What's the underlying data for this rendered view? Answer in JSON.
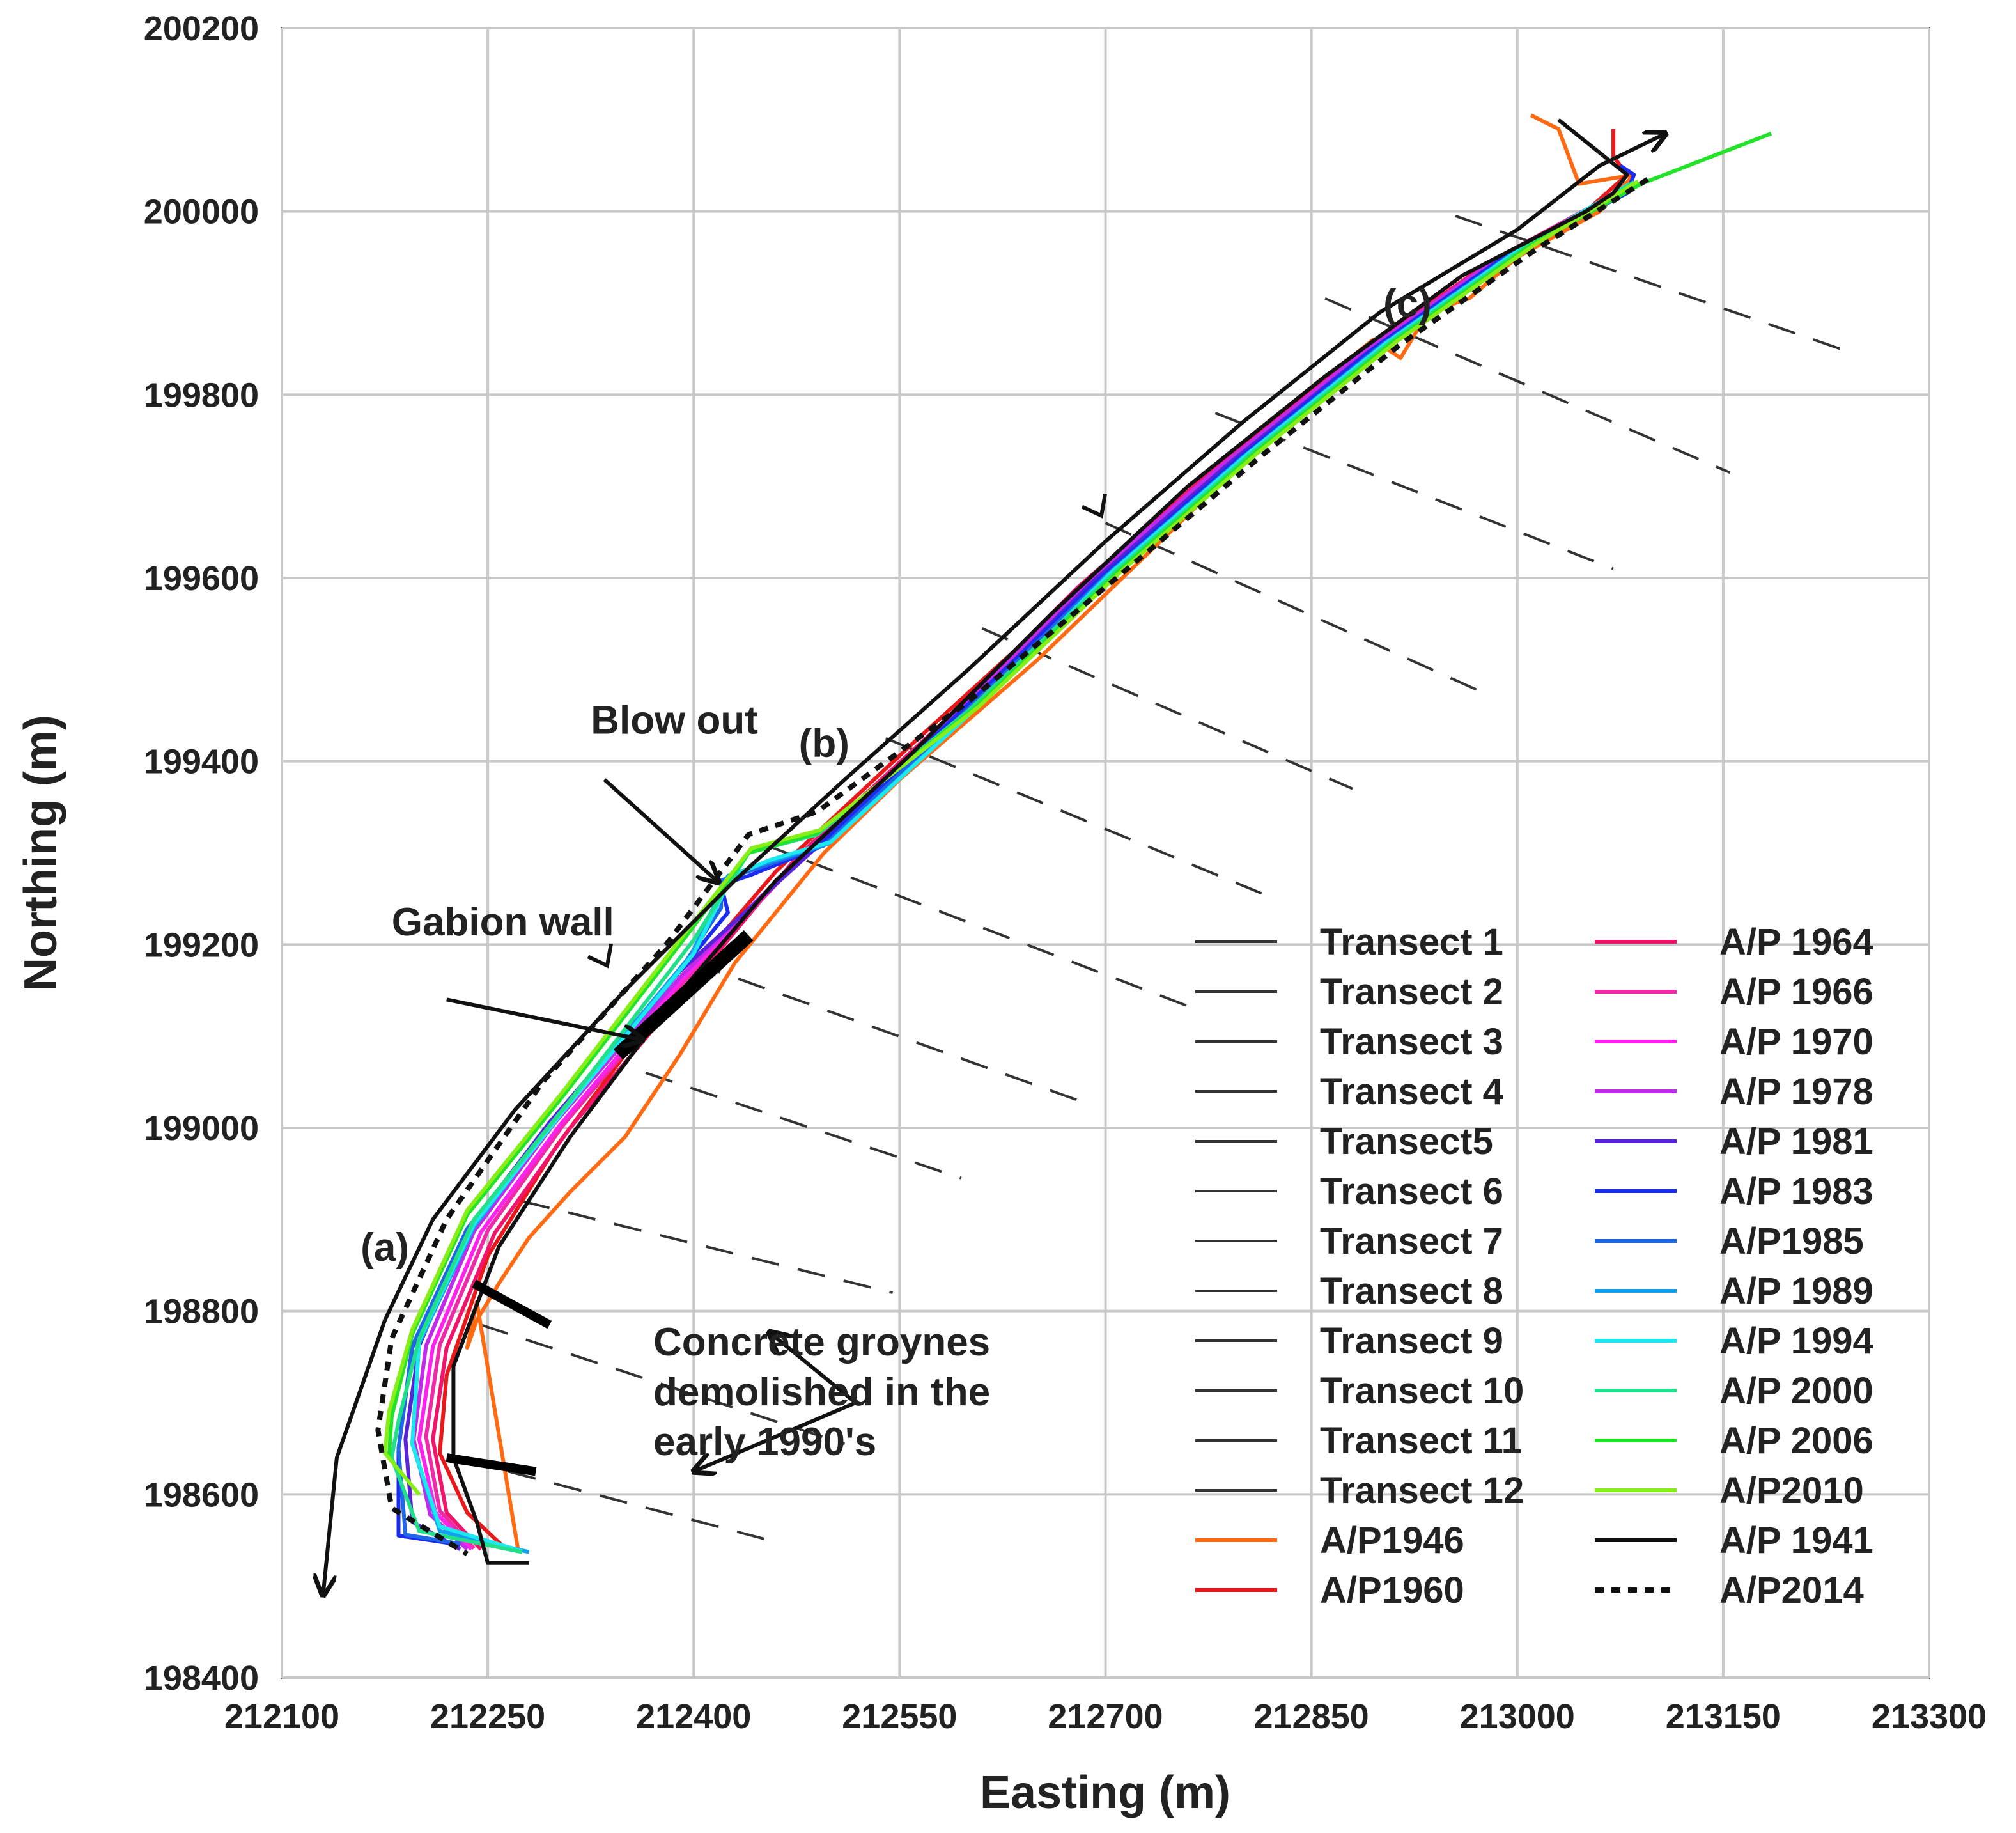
{
  "chart_data": {
    "type": "line",
    "xlabel": "Easting (m)",
    "ylabel": "Northing (m)",
    "xlim": [
      212100,
      213300
    ],
    "ylim": [
      198400,
      200200
    ],
    "xticks": [
      "212100",
      "212250",
      "212400",
      "212550",
      "212700",
      "212850",
      "213000",
      "213150",
      "213300"
    ],
    "yticks": [
      "198400",
      "198600",
      "198800",
      "199000",
      "199200",
      "199400",
      "199600",
      "199800",
      "200000",
      "200200"
    ],
    "grid": true,
    "legend_position": "bottom-right",
    "legend_left": [
      "Transect 1",
      "Transect 2",
      "Transect 3",
      "Transect 4",
      "Transect5",
      "Transect 6",
      "Transect 7",
      "Transect 8",
      "Transect 9",
      "Transect 10",
      "Transect 11",
      "Transect 12",
      "A/P1946",
      "A/P1960"
    ],
    "legend_right": [
      "A/P 1964",
      "A/P 1966",
      "A/P 1970",
      "A/P 1978",
      "A/P 1981",
      "A/P 1983",
      "A/P1985",
      "A/P 1989",
      "A/P 1994",
      "A/P 2000",
      "A/P 2006",
      "A/P2010",
      "A/P 1941",
      "A/P2014"
    ],
    "transects": [
      {
        "name": "Transect 1",
        "x": [
          212265,
          212455
        ],
        "y": [
          198625,
          198550
        ]
      },
      {
        "name": "Transect 2",
        "x": [
          212245,
          212510
        ],
        "y": [
          198785,
          198655
        ]
      },
      {
        "name": "Transect 3",
        "x": [
          212275,
          212545
        ],
        "y": [
          198920,
          198820
        ]
      },
      {
        "name": "Transect 4",
        "x": [
          212365,
          212595
        ],
        "y": [
          199060,
          198945
        ]
      },
      {
        "name": "Transect5",
        "x": [
          212400,
          212680
        ],
        "y": [
          199180,
          199030
        ]
      },
      {
        "name": "Transect 6",
        "x": [
          212450,
          212765
        ],
        "y": [
          199310,
          199130
        ]
      },
      {
        "name": "Transect 7",
        "x": [
          212540,
          212815
        ],
        "y": [
          199425,
          199255
        ]
      },
      {
        "name": "Transect 8",
        "x": [
          212610,
          212880
        ],
        "y": [
          199545,
          199370
        ]
      },
      {
        "name": "Transect 9",
        "x": [
          212700,
          212975
        ],
        "y": [
          199660,
          199475
        ]
      },
      {
        "name": "Transect 10",
        "x": [
          212780,
          213070
        ],
        "y": [
          199780,
          199610
        ]
      },
      {
        "name": "Transect 11",
        "x": [
          212860,
          213155
        ],
        "y": [
          199905,
          199715
        ]
      },
      {
        "name": "Transect 12",
        "x": [
          212955,
          213245
        ],
        "y": [
          199995,
          199845
        ]
      }
    ],
    "series": [
      {
        "name": "A/P1946",
        "color": "#ff6a13",
        "dash": "solid",
        "x": [
          213010,
          213030,
          213045,
          213085,
          213060,
          213000,
          212965,
          212935,
          212915,
          212895,
          212870,
          212850,
          212830,
          212740,
          212650,
          212550,
          212495,
          212430,
          212390,
          212350,
          212310,
          212280,
          212258,
          212242,
          212235,
          212242,
          212272
        ],
        "y": [
          200105,
          200090,
          200030,
          200040,
          200000,
          199950,
          199905,
          199890,
          199840,
          199860,
          199830,
          199795,
          199770,
          199640,
          199510,
          199380,
          199300,
          199180,
          199080,
          198990,
          198930,
          198880,
          198830,
          198790,
          198760,
          198810,
          198540
        ]
      },
      {
        "name": "A/P1960",
        "color": "#e8181b",
        "dash": "solid",
        "x": [
          213070,
          213070,
          213080,
          213050,
          212960,
          212860,
          212760,
          212670,
          212560,
          212460,
          212380,
          212300,
          212250,
          212220,
          212215,
          212235,
          212260
        ],
        "y": [
          200090,
          200060,
          200040,
          200000,
          199930,
          199820,
          199700,
          199570,
          199420,
          199280,
          199140,
          198980,
          198860,
          198730,
          198645,
          198580,
          198545
        ]
      },
      {
        "name": "A/P 1964",
        "color": "#f0156b",
        "dash": "solid",
        "x": [
          213060,
          212980,
          212880,
          212780,
          212680,
          212580,
          212475,
          212400,
          212310,
          212255,
          212220,
          212210,
          212220,
          212245
        ],
        "y": [
          200010,
          199945,
          199840,
          199720,
          199590,
          199440,
          199295,
          199160,
          199000,
          198885,
          198760,
          198660,
          198580,
          198540
        ]
      },
      {
        "name": "A/P 1966",
        "color": "#ee2aa8",
        "dash": "solid",
        "x": [
          213062,
          212985,
          212885,
          212785,
          212685,
          212585,
          212480,
          212395,
          212305,
          212250,
          212215,
          212205,
          212215,
          212240
        ],
        "y": [
          200012,
          199948,
          199843,
          199722,
          199592,
          199443,
          199297,
          199163,
          199003,
          198888,
          198763,
          198663,
          198582,
          198541
        ]
      },
      {
        "name": "A/P 1970",
        "color": "#ff22ee",
        "dash": "solid",
        "x": [
          213064,
          212983,
          212883,
          212783,
          212683,
          212583,
          212478,
          212392,
          212302,
          212245,
          212210,
          212200,
          212212,
          212238
        ],
        "y": [
          200013,
          199946,
          199841,
          199721,
          199591,
          199442,
          199296,
          199162,
          199002,
          198886,
          198761,
          198660,
          198580,
          198540
        ]
      },
      {
        "name": "A/P 1978",
        "color": "#c02bea",
        "dash": "solid",
        "x": [
          213066,
          212984,
          212884,
          212784,
          212684,
          212584,
          212479,
          212390,
          212298,
          212240,
          212205,
          212196,
          212208,
          212235
        ],
        "y": [
          200014,
          199947,
          199842,
          199722,
          199592,
          199443,
          199297,
          199164,
          199004,
          198887,
          198762,
          198660,
          198578,
          198540
        ]
      },
      {
        "name": "A/P 1981",
        "color": "#5822d8",
        "dash": "solid",
        "x": [
          213070,
          212990,
          212890,
          212790,
          212690,
          212590,
          212485,
          212388,
          212295,
          212235,
          212200,
          212190,
          212195,
          212230
        ],
        "y": [
          200015,
          199950,
          199845,
          199725,
          199595,
          199445,
          199300,
          199168,
          199006,
          198888,
          198762,
          198660,
          198570,
          198540
        ]
      },
      {
        "name": "A/P 1983",
        "color": "#1a2cf0",
        "dash": "solid",
        "x": [
          213075,
          213085,
          213080,
          212995,
          212895,
          212795,
          212695,
          212590,
          212490,
          212440,
          212420,
          212425,
          212395,
          212300,
          212235,
          212195,
          212185,
          212185,
          212230
        ],
        "y": [
          200050,
          200040,
          200020,
          199955,
          199850,
          199728,
          199598,
          199448,
          199305,
          199275,
          199265,
          199235,
          199180,
          199010,
          198888,
          198760,
          198650,
          198555,
          198545
        ]
      },
      {
        "name": "A/P1985",
        "color": "#1f67e8",
        "dash": "solid",
        "x": [
          213078,
          213000,
          212900,
          212800,
          212700,
          212595,
          212495,
          212450,
          212420,
          212420,
          212395,
          212300,
          212235,
          212195,
          212185,
          212190,
          212230
        ],
        "y": [
          200025,
          199958,
          199853,
          199732,
          199602,
          199450,
          199308,
          199285,
          199270,
          199240,
          199183,
          199012,
          198890,
          198762,
          198650,
          198556,
          198546
        ]
      },
      {
        "name": "A/P 1989",
        "color": "#12a0f0",
        "dash": "solid",
        "x": [
          213080,
          213003,
          212903,
          212803,
          212703,
          212598,
          212498,
          212455,
          212425,
          212398,
          212302,
          212240,
          212200,
          212195,
          212215,
          212280
        ],
        "y": [
          200028,
          199960,
          199855,
          199735,
          199605,
          199448,
          199310,
          199290,
          199275,
          199188,
          199015,
          198892,
          198765,
          198655,
          198560,
          198537
        ]
      },
      {
        "name": "A/P 1994",
        "color": "#1ce8f0",
        "dash": "solid",
        "x": [
          213082,
          213005,
          212905,
          212805,
          212705,
          212600,
          212500,
          212455,
          212428,
          212400,
          212305,
          212240,
          212200,
          212195,
          212215,
          212275
        ],
        "y": [
          200030,
          199962,
          199857,
          199737,
          199607,
          199450,
          199312,
          199292,
          199275,
          199190,
          199018,
          198895,
          198768,
          198655,
          198565,
          198538
        ]
      },
      {
        "name": "A/P 2000",
        "color": "#22e08a",
        "dash": "solid",
        "x": [
          213085,
          213008,
          212908,
          212808,
          212708,
          212600,
          212490,
          212440,
          212400,
          212310,
          212240,
          212200,
          212185,
          212180,
          212200,
          212275
        ],
        "y": [
          200032,
          199963,
          199858,
          199738,
          199608,
          199455,
          199320,
          199300,
          199205,
          199030,
          198900,
          198770,
          198680,
          198640,
          198560,
          198537
        ]
      },
      {
        "name": "A/P 2006",
        "color": "#22e22a",
        "dash": "solid",
        "x": [
          213185,
          213090,
          213010,
          212910,
          212810,
          212710,
          212605,
          212490,
          212440,
          212395,
          212305,
          212235,
          212195,
          212180,
          212178
        ],
        "y": [
          200085,
          200030,
          199963,
          199858,
          199738,
          199608,
          199458,
          199322,
          199300,
          199210,
          199035,
          198905,
          198775,
          198685,
          198640
        ]
      },
      {
        "name": "A/P2010",
        "color": "#88ee18",
        "dash": "solid",
        "x": [
          213088,
          213012,
          212912,
          212812,
          212712,
          212608,
          212492,
          212442,
          212395,
          212305,
          212235,
          212195,
          212178,
          212175,
          212200
        ],
        "y": [
          200033,
          199963,
          199858,
          199738,
          199608,
          199460,
          199325,
          199305,
          199215,
          199040,
          198910,
          198780,
          198690,
          198645,
          198600
        ]
      },
      {
        "name": "A/P 1941",
        "color": "#111111",
        "dash": "solid",
        "x": [
          213030,
          213055,
          213080,
          213070,
          213050,
          212960,
          212860,
          212760,
          212660,
          212560,
          212460,
          212380,
          212310,
          212258,
          212225,
          212225,
          212242,
          212250,
          212280
        ],
        "y": [
          200100,
          200070,
          200040,
          200020,
          200000,
          199930,
          199820,
          199700,
          199560,
          199410,
          199270,
          199130,
          198990,
          198870,
          198740,
          198640,
          198570,
          198525,
          198525
        ]
      },
      {
        "name": "A/P2014",
        "color": "#111111",
        "dash": "dashed",
        "x": [
          213095,
          213015,
          212915,
          212815,
          212712,
          212600,
          212490,
          212440,
          212380,
          212290,
          212220,
          212180,
          212170,
          212180,
          212235
        ],
        "y": [
          200035,
          199960,
          199855,
          199735,
          199605,
          199465,
          199345,
          199320,
          199200,
          199050,
          198900,
          198770,
          198670,
          198585,
          198535
        ]
      }
    ],
    "annotations": [
      {
        "text": "Blow out",
        "x": 212325,
        "y": 199430
      },
      {
        "text": "Gabion wall",
        "x": 212180,
        "y": 199210
      },
      {
        "text": "(a)",
        "x": 212175,
        "y": 198855
      },
      {
        "text": "(b)",
        "x": 212495,
        "y": 199405
      },
      {
        "text": "(c)",
        "x": 212920,
        "y": 199885
      }
    ],
    "concrete_groynes_note": [
      "Concrete groynes",
      "demolished in the",
      "early 1990's"
    ],
    "gabion_wall_segment": {
      "x": [
        212345,
        212440
      ],
      "y": [
        199080,
        199210
      ]
    },
    "groyne_marks": [
      {
        "x": [
          212240,
          212295
        ],
        "y": [
          198830,
          198785
        ]
      },
      {
        "x": [
          212220,
          212285
        ],
        "y": [
          198640,
          198625
        ]
      }
    ],
    "alongshore_arrow": {
      "x": [
        212130,
        212140,
        212175,
        212210,
        212270,
        212350,
        212430,
        212510,
        212600,
        212700,
        212800,
        212900,
        213000,
        213060,
        213108
      ],
      "y": [
        198490,
        198640,
        198790,
        198900,
        199020,
        199150,
        199270,
        199380,
        199500,
        199640,
        199770,
        199890,
        199980,
        200050,
        200085
      ]
    },
    "alongshore_arrow_mid_heads": [
      {
        "x": 212697,
        "y": 199668
      },
      {
        "x": 212337,
        "y": 199177
      }
    ],
    "leader_arrows": [
      {
        "from": [
          212335,
          199380
        ],
        "to": [
          212418,
          199268
        ]
      },
      {
        "from": [
          212220,
          199140
        ],
        "to": [
          212363,
          199096
        ]
      },
      {
        "from": [
          212518,
          198700
        ],
        "to": [
          212455,
          198777
        ]
      },
      {
        "from": [
          212518,
          198700
        ],
        "to": [
          212400,
          198625
        ]
      }
    ]
  }
}
